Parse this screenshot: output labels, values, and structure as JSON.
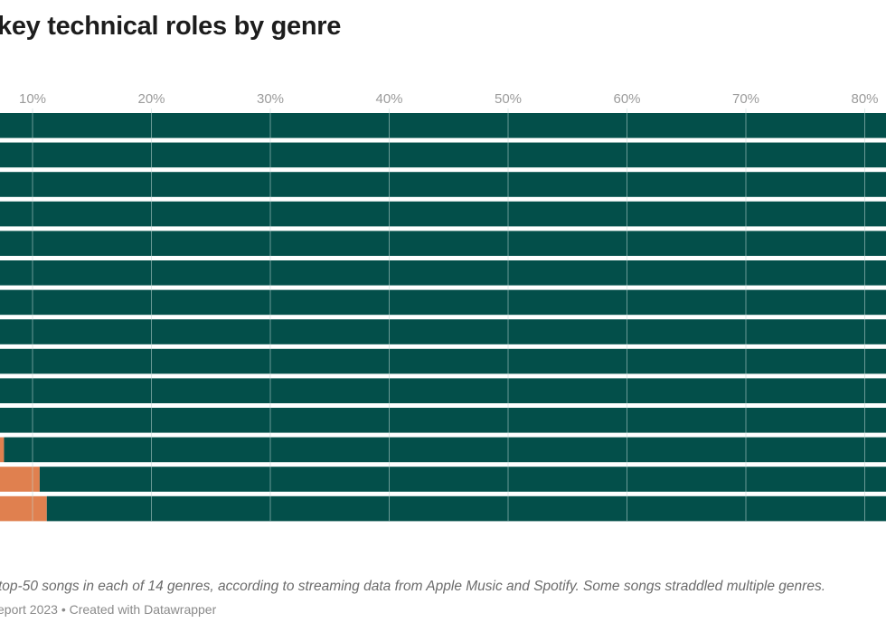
{
  "title": "key technical roles by genre",
  "note": "top-50 songs in each of 14 genres, according to streaming data from Apple Music and Spotify. Some songs straddled multiple genres.",
  "source": "eport 2023 • Created with Datawrapper",
  "colors": {
    "bar_main": "#034f4a",
    "bar_accent": "#e0804f",
    "gridline": "#bfd9d6",
    "tick_label": "#9b9b9b"
  },
  "chart_data": {
    "type": "bar",
    "orientation": "horizontal",
    "stacked": true,
    "x_tick_labels": [
      "10%",
      "20%",
      "30%",
      "40%",
      "50%",
      "60%",
      "70%",
      "80%"
    ],
    "x_ticks": [
      10,
      20,
      30,
      40,
      50,
      60,
      70,
      80
    ],
    "grid": true,
    "series": [
      {
        "color": "#e0804f",
        "values": [
          0,
          0,
          0,
          0,
          0,
          0,
          0,
          0,
          0,
          0,
          0,
          7.6,
          10.6,
          11.2
        ]
      },
      {
        "color": "#034f4a",
        "values": [
          100,
          100,
          100,
          100,
          100,
          100,
          100,
          100,
          100,
          100,
          100,
          92.4,
          89.4,
          88.8
        ]
      }
    ]
  }
}
